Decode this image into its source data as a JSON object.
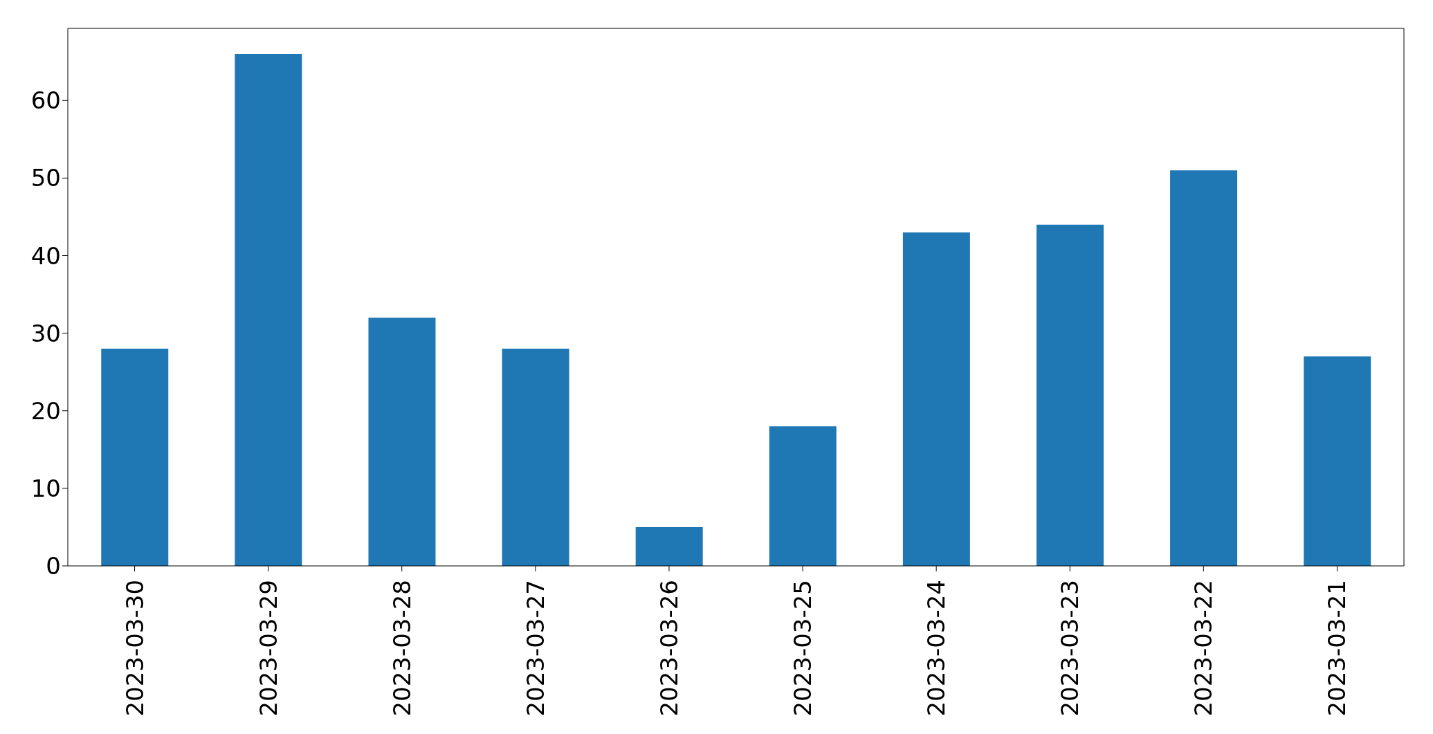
{
  "chart_data": {
    "type": "bar",
    "categories": [
      "2023-03-30",
      "2023-03-29",
      "2023-03-28",
      "2023-03-27",
      "2023-03-26",
      "2023-03-25",
      "2023-03-24",
      "2023-03-23",
      "2023-03-22",
      "2023-03-21"
    ],
    "values": [
      28,
      66,
      32,
      28,
      5,
      18,
      43,
      44,
      51,
      27
    ],
    "color": "#1f77b4",
    "ylim": [
      0,
      69.3
    ],
    "yticks": [
      0,
      10,
      20,
      30,
      40,
      50,
      60
    ],
    "grid": false
  }
}
